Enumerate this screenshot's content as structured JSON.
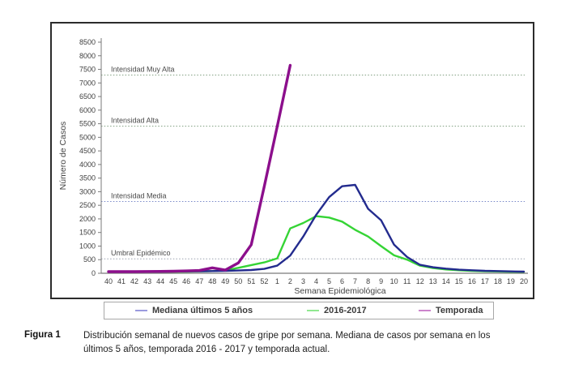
{
  "figure": {
    "caption_label": "Figura 1",
    "caption_line1": "Distribución semanal de nuevos casos de gripe por semana. Mediana de casos por semana en los",
    "caption_line2": "últimos 5 años, temporada 2016 - 2017 y temporada actual."
  },
  "chart_data": {
    "type": "line",
    "title": "",
    "xlabel": "Semana Epidemiológica",
    "ylabel": "Número de Casos",
    "ylim": [
      0,
      8500
    ],
    "ytick_step": 500,
    "grid": false,
    "legend_position": "bottom",
    "categories": [
      "40",
      "41",
      "42",
      "43",
      "44",
      "45",
      "46",
      "47",
      "48",
      "49",
      "50",
      "51",
      "52",
      "1",
      "2",
      "3",
      "4",
      "5",
      "6",
      "7",
      "8",
      "9",
      "10",
      "11",
      "12",
      "13",
      "14",
      "15",
      "16",
      "17",
      "18",
      "19",
      "20"
    ],
    "series": [
      {
        "name": "Mediana últimos 5 años",
        "color": "#232b8e",
        "swatch": "#9a9ade",
        "width": 2.4,
        "values": [
          60,
          60,
          60,
          60,
          60,
          65,
          70,
          75,
          80,
          90,
          100,
          120,
          160,
          280,
          650,
          1350,
          2150,
          2800,
          3200,
          3250,
          2370,
          1950,
          1050,
          600,
          310,
          220,
          170,
          130,
          110,
          90,
          80,
          70,
          60
        ]
      },
      {
        "name": "2016-2017",
        "color": "#35d435",
        "swatch": "#90e890",
        "width": 2.4,
        "values": [
          50,
          50,
          50,
          50,
          50,
          55,
          60,
          70,
          80,
          110,
          200,
          300,
          400,
          550,
          1650,
          1850,
          2100,
          2050,
          1900,
          1600,
          1350,
          1000,
          660,
          500,
          280,
          190,
          140,
          110,
          90,
          75,
          65,
          55,
          50
        ]
      },
      {
        "name": "Temporada",
        "color": "#8c0f8c",
        "swatch": "#cc85cc",
        "width": 3.4,
        "values": [
          60,
          60,
          60,
          65,
          70,
          75,
          85,
          100,
          200,
          120,
          380,
          1050,
          3200,
          5400,
          7650,
          null,
          null,
          null,
          null,
          null,
          null,
          null,
          null,
          null,
          null,
          null,
          null,
          null,
          null,
          null,
          null,
          null,
          null
        ]
      }
    ],
    "thresholds": [
      {
        "label": "Umbral Epidémico",
        "value": 530,
        "color": "#98a0ae"
      },
      {
        "label": "Intensidad Media",
        "value": 2640,
        "color": "#7787c8"
      },
      {
        "label": "Intensidad Alta",
        "value": 5410,
        "color": "#7d9d7d"
      },
      {
        "label": "Intensidad Muy Alta",
        "value": 7290,
        "color": "#7d9d7d"
      }
    ]
  }
}
